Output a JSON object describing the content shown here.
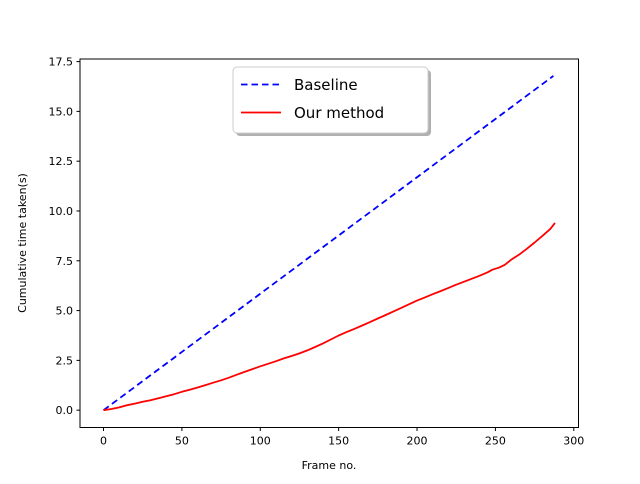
{
  "chart_data": {
    "type": "line",
    "title": "",
    "xlabel": "Frame no.",
    "ylabel": "Cumulative time taken(s)",
    "xlim": [
      -15,
      303
    ],
    "ylim": [
      -0.87,
      17.63
    ],
    "grid": false,
    "xticks": [
      {
        "v": 0,
        "label": "0"
      },
      {
        "v": 50,
        "label": "50"
      },
      {
        "v": 100,
        "label": "100"
      },
      {
        "v": 150,
        "label": "150"
      },
      {
        "v": 200,
        "label": "200"
      },
      {
        "v": 250,
        "label": "250"
      },
      {
        "v": 300,
        "label": "300"
      }
    ],
    "yticks": [
      {
        "v": 0.0,
        "label": "0.0"
      },
      {
        "v": 2.5,
        "label": "2.5"
      },
      {
        "v": 5.0,
        "label": "5.0"
      },
      {
        "v": 7.5,
        "label": "7.5"
      },
      {
        "v": 10.0,
        "label": "10.0"
      },
      {
        "v": 12.5,
        "label": "12.5"
      },
      {
        "v": 15.0,
        "label": "15.0"
      },
      {
        "v": 17.5,
        "label": "17.5"
      }
    ],
    "legend": {
      "position": "upper center",
      "border_color": "#cccccc",
      "shadow_color": "#b0b0b0",
      "entries": [
        {
          "label": "Baseline",
          "color": "#0000ff",
          "linestyle": "dashed"
        },
        {
          "label": "Our method",
          "color": "#ff0000",
          "linestyle": "solid"
        }
      ]
    },
    "series": [
      {
        "name": "Baseline",
        "color": "#0000ff",
        "linestyle": "dashed",
        "points": [
          [
            0,
            0.0
          ],
          [
            287,
            16.78
          ]
        ]
      },
      {
        "name": "Our method",
        "color": "#ff0000",
        "linestyle": "solid",
        "points": [
          [
            0,
            0.0
          ],
          [
            5,
            0.06
          ],
          [
            10,
            0.14
          ],
          [
            15,
            0.25
          ],
          [
            20,
            0.33
          ],
          [
            25,
            0.42
          ],
          [
            30,
            0.5
          ],
          [
            35,
            0.6
          ],
          [
            40,
            0.7
          ],
          [
            45,
            0.8
          ],
          [
            50,
            0.92
          ],
          [
            55,
            1.03
          ],
          [
            60,
            1.14
          ],
          [
            65,
            1.26
          ],
          [
            70,
            1.38
          ],
          [
            75,
            1.5
          ],
          [
            80,
            1.63
          ],
          [
            85,
            1.78
          ],
          [
            90,
            1.92
          ],
          [
            95,
            2.06
          ],
          [
            100,
            2.2
          ],
          [
            105,
            2.33
          ],
          [
            110,
            2.46
          ],
          [
            115,
            2.6
          ],
          [
            120,
            2.72
          ],
          [
            125,
            2.85
          ],
          [
            130,
            3.0
          ],
          [
            135,
            3.17
          ],
          [
            140,
            3.35
          ],
          [
            145,
            3.55
          ],
          [
            150,
            3.75
          ],
          [
            155,
            3.92
          ],
          [
            160,
            4.08
          ],
          [
            165,
            4.25
          ],
          [
            170,
            4.42
          ],
          [
            175,
            4.6
          ],
          [
            180,
            4.78
          ],
          [
            185,
            4.96
          ],
          [
            190,
            5.14
          ],
          [
            195,
            5.32
          ],
          [
            200,
            5.5
          ],
          [
            205,
            5.66
          ],
          [
            210,
            5.82
          ],
          [
            215,
            5.98
          ],
          [
            220,
            6.14
          ],
          [
            225,
            6.3
          ],
          [
            230,
            6.45
          ],
          [
            235,
            6.6
          ],
          [
            240,
            6.75
          ],
          [
            245,
            6.92
          ],
          [
            248,
            7.05
          ],
          [
            252,
            7.15
          ],
          [
            256,
            7.3
          ],
          [
            260,
            7.55
          ],
          [
            265,
            7.8
          ],
          [
            270,
            8.1
          ],
          [
            275,
            8.42
          ],
          [
            280,
            8.75
          ],
          [
            285,
            9.1
          ],
          [
            288,
            9.4
          ]
        ]
      }
    ]
  }
}
